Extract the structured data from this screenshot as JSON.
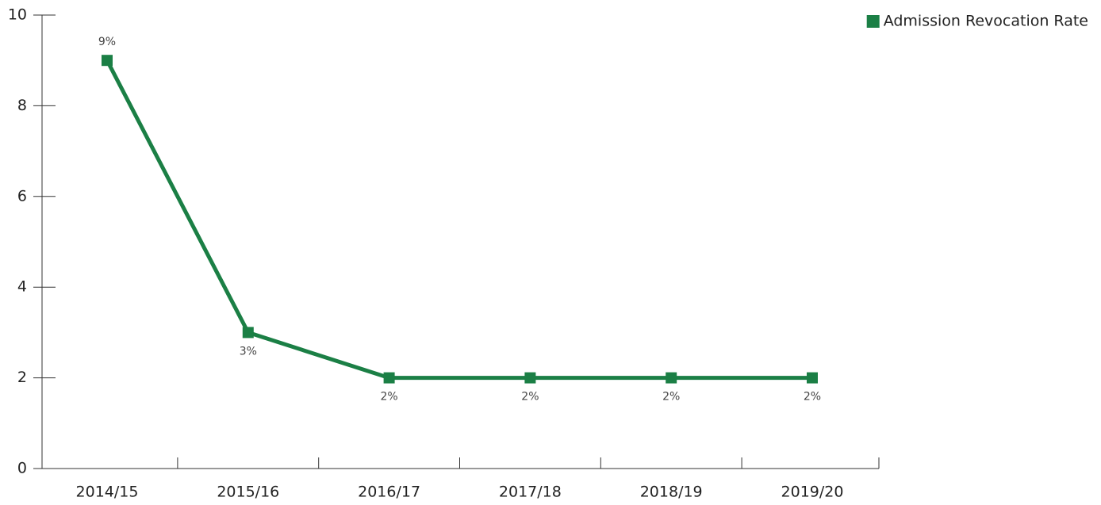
{
  "chart_data": {
    "type": "line",
    "categories": [
      "2014/15",
      "2015/16",
      "2016/17",
      "2017/18",
      "2018/19",
      "2019/20"
    ],
    "series": [
      {
        "name": "Admission Revocation Rate",
        "color": "#1b7f45",
        "values": [
          9,
          3,
          2,
          2,
          2,
          2
        ],
        "value_labels": [
          "9%",
          "3%",
          "2%",
          "2%",
          "2%",
          "2%"
        ]
      }
    ],
    "ylim": [
      0,
      10
    ],
    "yticks": [
      0,
      2,
      4,
      6,
      8,
      10
    ],
    "legend": "top-right",
    "grid": false
  }
}
